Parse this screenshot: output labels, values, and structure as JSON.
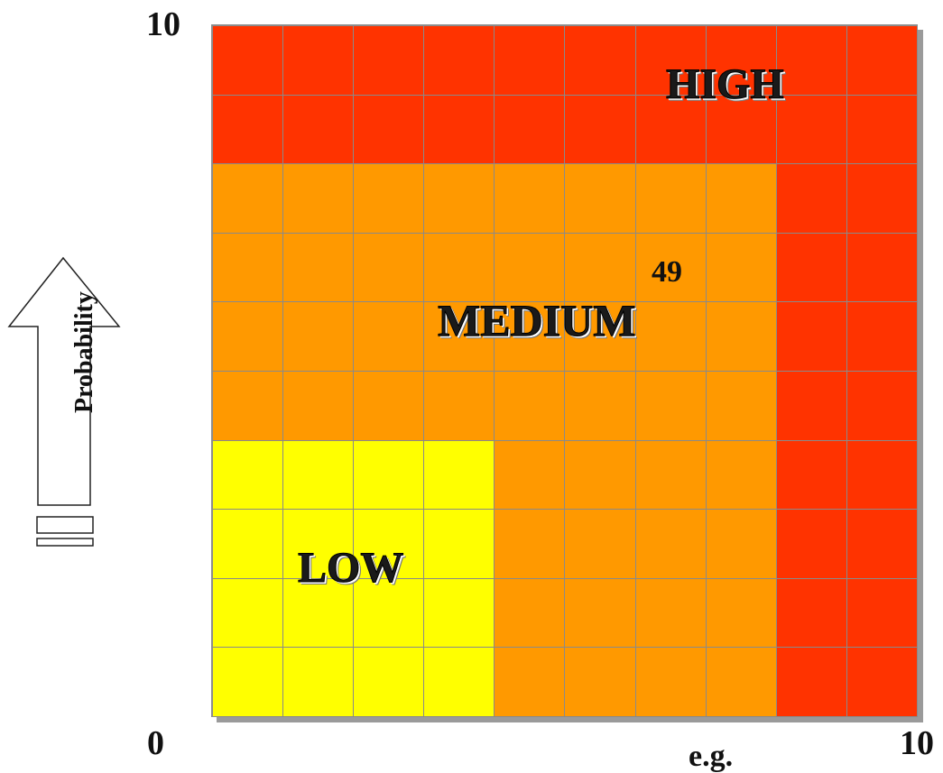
{
  "axis": {
    "y_max_label": "10",
    "origin_label": "0",
    "x_max_label": "10",
    "x_label": "e.g.",
    "y_label": "Probability"
  },
  "zones": {
    "high": "HIGH",
    "medium": "MEDIUM",
    "low": "LOW"
  },
  "annotation": {
    "value": "49"
  },
  "colors": {
    "high": "#ff3300",
    "medium": "#ff9900",
    "low": "#ffff00",
    "grid_line": "#8a8a8a"
  },
  "matrix": {
    "rows": 10,
    "cols": 10,
    "zone_map": [
      "HHHHHHHHHH",
      "HHHHHHHHHH",
      "MMMMMMMMHH",
      "MMMMMMMMHH",
      "MMMMMMMMHH",
      "MMMMMMMMHH",
      "LLLLMMMMHH",
      "LLLLMMMMHH",
      "LLLLMMMMHH",
      "LLLLMMMMHH"
    ]
  }
}
